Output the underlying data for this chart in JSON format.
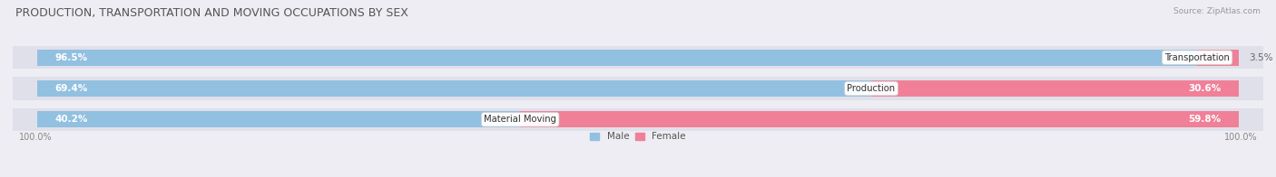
{
  "title": "PRODUCTION, TRANSPORTATION AND MOVING OCCUPATIONS BY SEX",
  "source": "Source: ZipAtlas.com",
  "categories": [
    "Material Moving",
    "Production",
    "Transportation"
  ],
  "male_pct": [
    40.2,
    69.4,
    96.5
  ],
  "female_pct": [
    59.8,
    30.6,
    3.5
  ],
  "male_color": "#92C0E0",
  "female_color": "#F08098",
  "bg_color": "#ededf3",
  "bar_bg_color": "#e0e0ea",
  "title_fontsize": 9,
  "label_fontsize": 7.5,
  "axis_label_fontsize": 7,
  "left_label": "100.0%",
  "right_label": "100.0%"
}
